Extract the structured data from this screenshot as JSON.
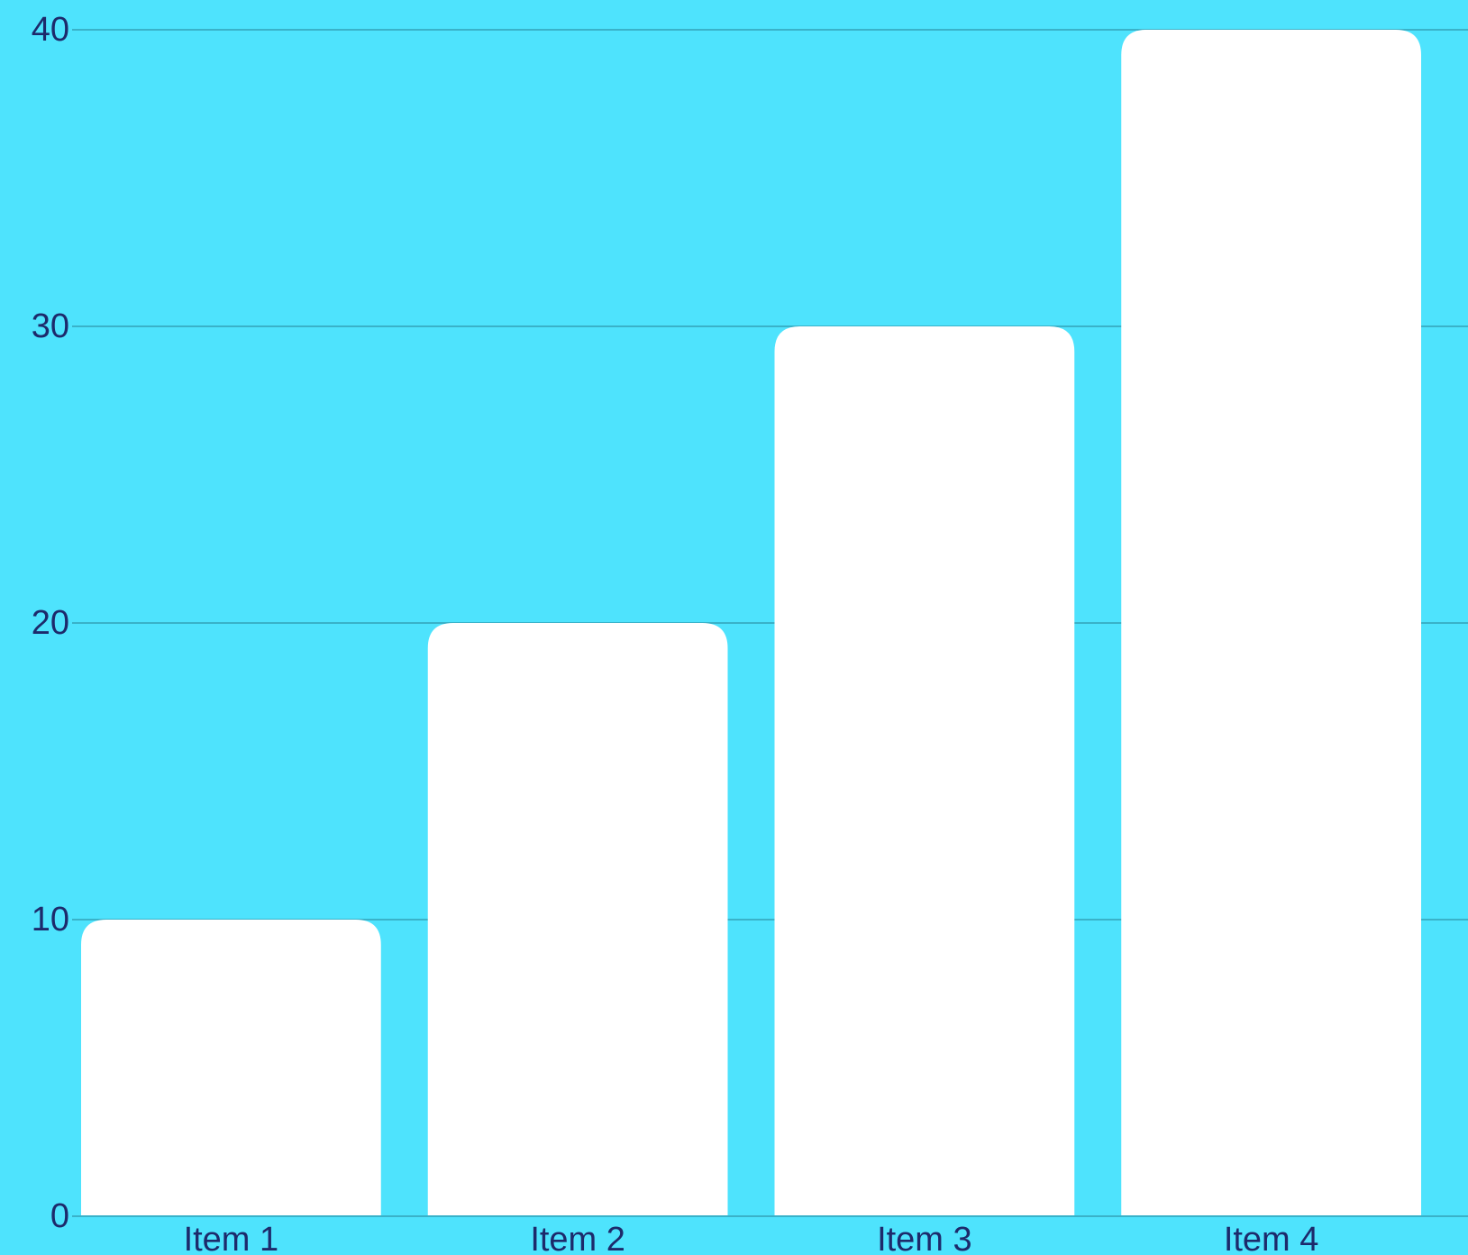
{
  "chart_data": {
    "type": "bar",
    "categories": [
      "Item 1",
      "Item 2",
      "Item 3",
      "Item 4"
    ],
    "values": [
      10,
      20,
      30,
      40
    ],
    "title": "",
    "xlabel": "",
    "ylabel": "",
    "ylim": [
      0,
      40
    ],
    "yticks": [
      0,
      10,
      20,
      30,
      40
    ],
    "ytick_labels": [
      "0",
      "10",
      "20",
      "30",
      "40"
    ],
    "grid": true,
    "legend": "none"
  },
  "colors": {
    "background": "#4ee3fd",
    "bar": "#ffffff",
    "gridline": "#39b2c9",
    "text": "#1d2a6b"
  }
}
